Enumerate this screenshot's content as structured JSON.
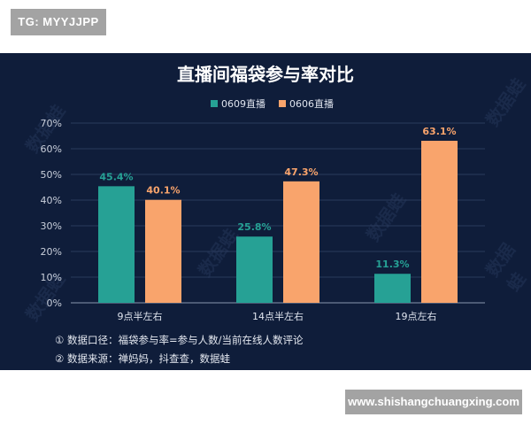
{
  "tag": {
    "text": "TG: MYYJJPP"
  },
  "site": {
    "text": "www.shishangchuangxing.com"
  },
  "watermark": {
    "text": "数据蛙"
  },
  "notes": [
    "① 数据口径：福袋参与率=参与人数/当前在线人数评论",
    "② 数据来源：禅妈妈，抖查查，数据蛙"
  ],
  "colors": {
    "background": "#0f1d3a",
    "series_1": "#26a195",
    "series_2": "#f9a46c",
    "axis_text": "#c9cfdb"
  },
  "chart_data": {
    "type": "bar",
    "title": "直播间福袋参与率对比",
    "categories": [
      "9点半左右",
      "14点半左右",
      "19点左右"
    ],
    "series": [
      {
        "name": "0609直播",
        "values": [
          45.4,
          25.8,
          11.3
        ],
        "labels": [
          "45.4%",
          "25.8%",
          "11.3%"
        ]
      },
      {
        "name": "0606直播",
        "values": [
          40.1,
          47.3,
          63.1
        ],
        "labels": [
          "40.1%",
          "47.3%",
          "63.1%"
        ]
      }
    ],
    "ylim": [
      0,
      70
    ],
    "yticks": [
      "0%",
      "10%",
      "20%",
      "30%",
      "40%",
      "50%",
      "60%",
      "70%"
    ],
    "grid": true,
    "legend": "top-center"
  }
}
